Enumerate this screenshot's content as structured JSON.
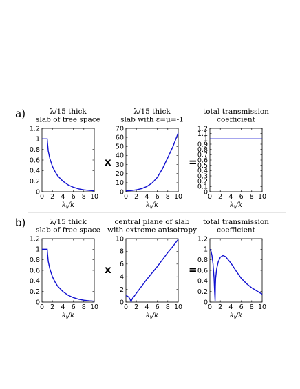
{
  "rows": [
    {
      "label": "a)",
      "operators": [
        "x",
        "="
      ],
      "panels": [
        {
          "title": [
            "λ/15 thick",
            "slab of free space"
          ],
          "chart_data": {
            "type": "line",
            "xlabel_main": "k",
            "xlabel_sub": "t",
            "xlabel_tail": "/k",
            "xlim": [
              0,
              10
            ],
            "ylim": [
              0,
              1.2
            ],
            "xticks": [
              "0",
              "2",
              "4",
              "6",
              "8",
              "10"
            ],
            "yticks": [
              "0",
              "0.2",
              "0.4",
              "0.6",
              "0.8",
              "1",
              "1.2"
            ],
            "x": [
              0,
              1,
              1.05,
              1.2,
              1.5,
              2,
              2.5,
              3,
              4,
              5,
              6,
              7,
              8,
              9,
              10
            ],
            "y": [
              1,
              1,
              0.93,
              0.77,
              0.63,
              0.48,
              0.38,
              0.3,
              0.2,
              0.13,
              0.085,
              0.055,
              0.037,
              0.025,
              0.017
            ]
          }
        },
        {
          "title": [
            "λ/15 thick",
            "slab with ε=μ=-1"
          ],
          "chart_data": {
            "type": "line",
            "xlabel_main": "k",
            "xlabel_sub": "t",
            "xlabel_tail": "/k",
            "xlim": [
              0,
              10
            ],
            "ylim": [
              0,
              70
            ],
            "xticks": [
              "0",
              "2",
              "4",
              "6",
              "8",
              "10"
            ],
            "yticks": [
              "0",
              "10",
              "20",
              "30",
              "40",
              "50",
              "60",
              "70"
            ],
            "x": [
              0,
              1,
              2,
              3,
              4,
              5,
              6,
              7,
              8,
              9,
              10
            ],
            "y": [
              1,
              1.3,
              2.1,
              3.5,
              5.8,
              9.6,
              15.8,
              25.5,
              37.5,
              50,
              65
            ]
          }
        },
        {
          "title": [
            "total transmission",
            "coefficient"
          ],
          "chart_data": {
            "type": "line",
            "xlabel_main": "k",
            "xlabel_sub": "t",
            "xlabel_tail": "/k",
            "xlim": [
              0,
              10
            ],
            "ylim": [
              0,
              1.2
            ],
            "xticks": [
              "0",
              "2",
              "4",
              "6",
              "8",
              "10"
            ],
            "yticks": [
              "0",
              "0.1",
              "0.2",
              "0.3",
              "0.4",
              "0.5",
              "0.6",
              "0.7",
              "0.8",
              "0.9",
              "1",
              "1.1",
              "1.2"
            ],
            "x": [
              0,
              10
            ],
            "y": [
              1,
              1
            ]
          }
        }
      ]
    },
    {
      "label": "b)",
      "operators": [
        "x",
        "="
      ],
      "panels": [
        {
          "title": [
            "λ/15 thick",
            "slab of free space"
          ],
          "chart_data": {
            "type": "line",
            "xlabel_main": "k",
            "xlabel_sub": "t",
            "xlabel_tail": "/k",
            "xlim": [
              0,
              10
            ],
            "ylim": [
              0,
              1.2
            ],
            "xticks": [
              "0",
              "2",
              "4",
              "6",
              "8",
              "10"
            ],
            "yticks": [
              "0",
              "0.2",
              "0.4",
              "0.6",
              "0.8",
              "1",
              "1.2"
            ],
            "x": [
              0,
              1,
              1.05,
              1.2,
              1.5,
              2,
              2.5,
              3,
              4,
              5,
              6,
              7,
              8,
              9,
              10
            ],
            "y": [
              1,
              1,
              0.93,
              0.77,
              0.63,
              0.48,
              0.38,
              0.3,
              0.2,
              0.13,
              0.085,
              0.055,
              0.037,
              0.025,
              0.017
            ]
          }
        },
        {
          "title": [
            "central plane of slab",
            "with extreme anisotropy"
          ],
          "chart_data": {
            "type": "line",
            "xlabel_main": "k",
            "xlabel_sub": "t",
            "xlabel_tail": "/k",
            "xlim": [
              0,
              10
            ],
            "ylim": [
              0,
              10
            ],
            "xticks": [
              "0",
              "2",
              "4",
              "6",
              "8",
              "10"
            ],
            "yticks": [
              "0",
              "2",
              "4",
              "6",
              "8",
              "10"
            ],
            "x": [
              0,
              0.2,
              0.4,
              0.6,
              0.8,
              0.9,
              1.0,
              1.1,
              1.3,
              1.6,
              2,
              3,
              4,
              5,
              6,
              7,
              8,
              9,
              10
            ],
            "y": [
              1,
              0.97,
              0.88,
              0.72,
              0.45,
              0.2,
              0.05,
              0.35,
              0.65,
              0.95,
              1.4,
              2.5,
              3.6,
              4.6,
              5.6,
              6.7,
              7.8,
              8.8,
              9.9
            ]
          }
        },
        {
          "title": [
            "total transmission",
            "coefficient"
          ],
          "chart_data": {
            "type": "line",
            "xlabel_main": "k",
            "xlabel_sub": "t",
            "xlabel_tail": "/k",
            "xlim": [
              0,
              10
            ],
            "ylim": [
              0,
              1.2
            ],
            "xticks": [
              "0",
              "2",
              "4",
              "6",
              "8",
              "10"
            ],
            "yticks": [
              "0",
              "0.2",
              "0.4",
              "0.6",
              "0.8",
              "1",
              "1.2"
            ],
            "x": [
              0,
              0.2,
              0.4,
              0.6,
              0.8,
              0.9,
              1.0,
              1.05,
              1.1,
              1.3,
              1.6,
              2,
              2.5,
              3,
              4,
              5,
              6,
              7,
              8,
              9,
              10
            ],
            "y": [
              1,
              0.97,
              0.88,
              0.72,
              0.45,
              0.2,
              0.02,
              0.3,
              0.45,
              0.63,
              0.76,
              0.85,
              0.88,
              0.86,
              0.74,
              0.59,
              0.45,
              0.35,
              0.27,
              0.21,
              0.15
            ]
          }
        }
      ]
    }
  ]
}
